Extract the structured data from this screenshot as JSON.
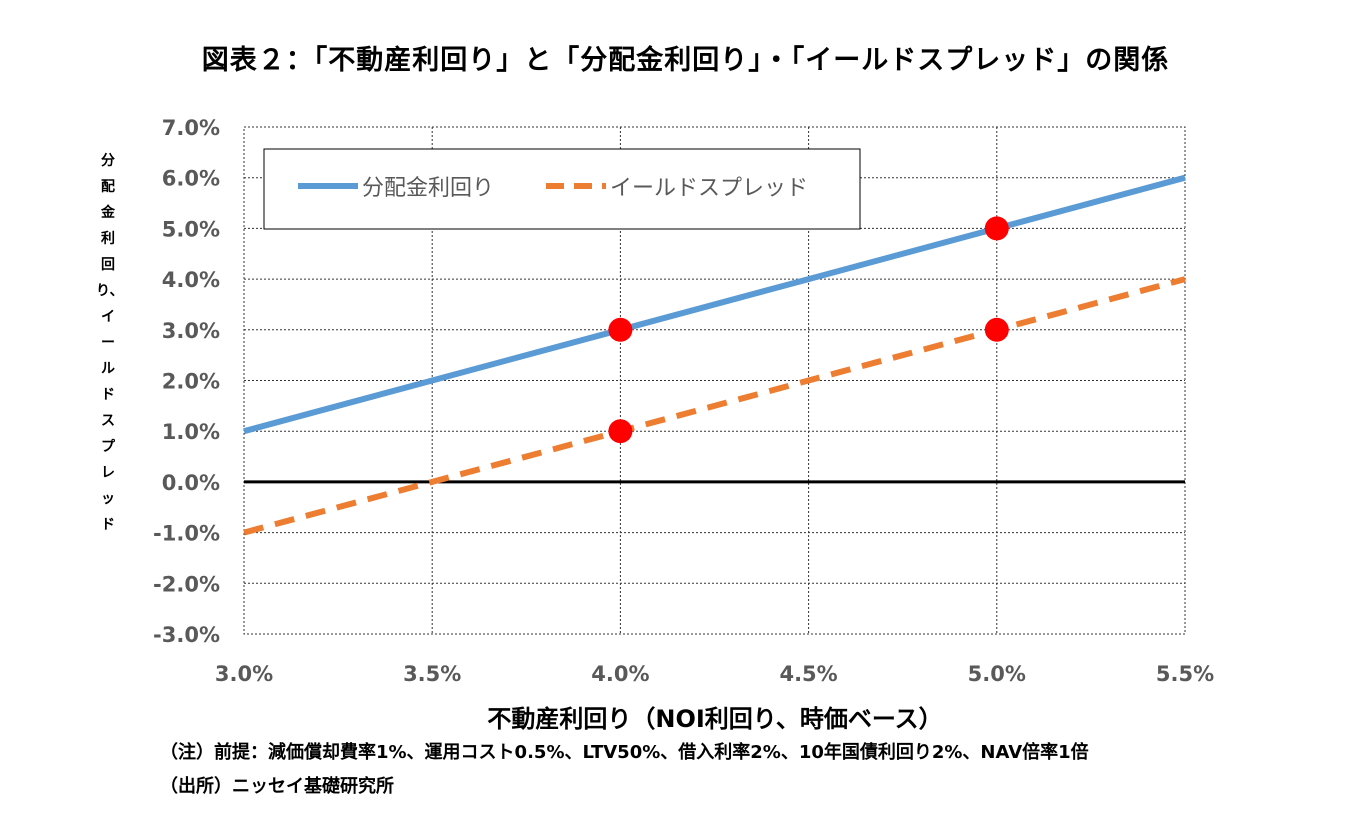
{
  "title": "図表２：「不動産利回り」と「分配金利回り」・「イールドスプレッド」の関係",
  "notes": {
    "assumption": "（注）前提：減価償却費率1%、運用コスト0.5%、LTV50%、借入利率2%、10年国債利回り2%、NAV倍率1倍",
    "source": "（出所）ニッセイ基礎研究所"
  },
  "chart_data": {
    "type": "line",
    "xlabel": "不動産利回り（NOI利回り、時価ベース）",
    "ylabel": "分配金利回り、イールドスプレッド",
    "x": [
      3.0,
      3.5,
      4.0,
      4.5,
      5.0,
      5.5
    ],
    "x_tick_labels": [
      "3.0%",
      "3.5%",
      "4.0%",
      "4.5%",
      "5.0%",
      "5.5%"
    ],
    "y_tick_labels": [
      "7.0%",
      "6.0%",
      "5.0%",
      "4.0%",
      "3.0%",
      "2.0%",
      "1.0%",
      "0.0%",
      "-1.0%",
      "-2.0%",
      "-3.0%"
    ],
    "xlim": [
      3.0,
      5.5
    ],
    "ylim": [
      -3.0,
      7.0
    ],
    "grid": true,
    "legend_position": "top-left",
    "series": [
      {
        "name": "分配金利回り",
        "values": [
          1.0,
          2.0,
          3.0,
          4.0,
          5.0,
          6.0
        ],
        "color": "#5B9BD5",
        "style": "solid"
      },
      {
        "name": "イールドスプレッド",
        "values": [
          -1.0,
          0.0,
          1.0,
          2.0,
          3.0,
          4.0
        ],
        "color": "#ED7D31",
        "style": "dashed"
      }
    ],
    "markers": [
      {
        "x": 4.0,
        "y": 3.0
      },
      {
        "x": 5.0,
        "y": 5.0
      },
      {
        "x": 4.0,
        "y": 1.0
      },
      {
        "x": 5.0,
        "y": 3.0
      }
    ],
    "marker_color": "#FF0000"
  }
}
